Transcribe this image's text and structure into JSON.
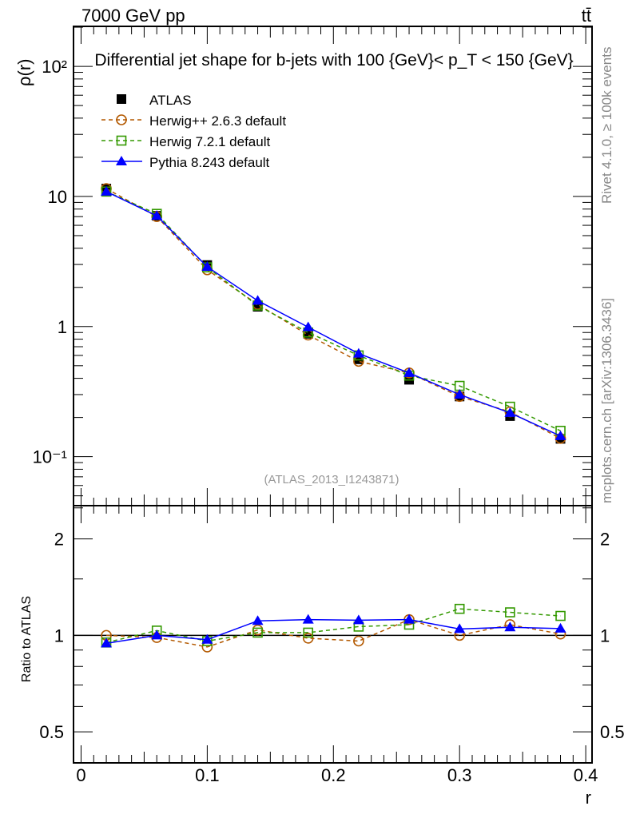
{
  "chart_data": [
    {
      "type": "line",
      "title": "Differential jet shape for b-jets with 100 {GeV}< p_T < 150 {GeV}",
      "header_left": "7000 GeV pp",
      "header_right": "tt̄",
      "side_label_top": "Rivet 4.1.0, ≥ 100k events",
      "side_label_bottom": "mcplots.cern.ch [arXiv:1306.3436]",
      "analysis_label": "(ATLAS_2013_I1243871)",
      "ylabel": "ρ(r)",
      "yscale": "log",
      "ylim": [
        0.042,
        203
      ],
      "xlim": [
        -0.006,
        0.405
      ],
      "yticks": [
        {
          "v": 100,
          "label": "10²"
        },
        {
          "v": 10,
          "label": "10"
        },
        {
          "v": 1,
          "label": "1"
        },
        {
          "v": 0.1,
          "label": "10⁻¹"
        }
      ],
      "x": [
        0.02,
        0.06,
        0.1,
        0.14,
        0.18,
        0.22,
        0.26,
        0.3,
        0.34,
        0.38
      ],
      "series": [
        {
          "name": "ATLAS",
          "color": "#000000",
          "marker": "filled-square",
          "values": [
            11.5,
            7.1,
            2.97,
            1.42,
            0.88,
            0.56,
            0.39,
            0.29,
            0.205,
            0.137
          ]
        },
        {
          "name": "Herwig++ 2.6.3 default",
          "color": "#b35900",
          "marker": "open-circle",
          "dash": true,
          "values": [
            11.5,
            7.0,
            2.73,
            1.48,
            0.86,
            0.54,
            0.44,
            0.29,
            0.221,
            0.138
          ]
        },
        {
          "name": "Herwig 7.2.1 default",
          "color": "#339900",
          "marker": "open-square",
          "dash": true,
          "values": [
            10.9,
            7.35,
            2.85,
            1.45,
            0.9,
            0.6,
            0.42,
            0.35,
            0.242,
            0.158
          ]
        },
        {
          "name": "Pythia 8.243 default",
          "color": "#0000ff",
          "marker": "filled-triangle",
          "values": [
            10.9,
            7.1,
            2.88,
            1.58,
            0.99,
            0.62,
            0.44,
            0.3,
            0.217,
            0.144
          ]
        }
      ]
    },
    {
      "type": "line",
      "ylabel": "Ratio to ATLAS",
      "xlabel": "r",
      "yscale": "log",
      "ylim": [
        0.4,
        2.54
      ],
      "xlim": [
        -0.006,
        0.405
      ],
      "yticks": [
        {
          "v": 2,
          "label": "2"
        },
        {
          "v": 1,
          "label": "1"
        },
        {
          "v": 0.5,
          "label": "0.5"
        }
      ],
      "xticks": [
        {
          "v": 0,
          "label": "0"
        },
        {
          "v": 0.1,
          "label": "0.1"
        },
        {
          "v": 0.2,
          "label": "0.2"
        },
        {
          "v": 0.3,
          "label": "0.3"
        },
        {
          "v": 0.4,
          "label": "0.4"
        }
      ],
      "x": [
        0.02,
        0.06,
        0.1,
        0.14,
        0.18,
        0.22,
        0.26,
        0.3,
        0.34,
        0.38
      ],
      "series": [
        {
          "name": "Herwig++ 2.6.3 default",
          "color": "#b35900",
          "marker": "open-circle",
          "dash": true,
          "values": [
            1.0,
            0.985,
            0.92,
            1.04,
            0.98,
            0.96,
            1.12,
            1.0,
            1.08,
            1.01
          ]
        },
        {
          "name": "Herwig 7.2.1 default",
          "color": "#339900",
          "marker": "open-square",
          "dash": true,
          "values": [
            0.95,
            1.035,
            0.96,
            1.02,
            1.02,
            1.065,
            1.08,
            1.21,
            1.18,
            1.15
          ]
        },
        {
          "name": "Pythia 8.243 default",
          "color": "#0000ff",
          "marker": "filled-triangle",
          "values": [
            0.944,
            1.0,
            0.97,
            1.11,
            1.12,
            1.115,
            1.12,
            1.047,
            1.06,
            1.05
          ]
        }
      ]
    }
  ]
}
